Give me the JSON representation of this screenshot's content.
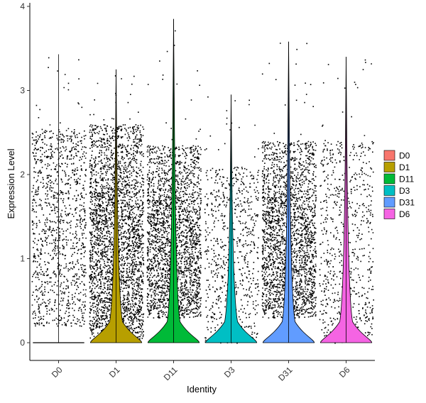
{
  "chart_data": {
    "type": "violin",
    "xlabel": "Identity",
    "ylabel": "Expression Level",
    "ylim": [
      -0.2,
      4.05
    ],
    "yticks": [
      0,
      1,
      2,
      3,
      4
    ],
    "categories": [
      "D0",
      "D1",
      "D11",
      "D3",
      "D31",
      "D6"
    ],
    "grid": false,
    "legend_placement": "right",
    "series": [
      {
        "name": "D0",
        "color": "#F8766D",
        "max": 3.43,
        "violin_peak_width": 0.0,
        "point_density": "medium",
        "point_range": [
          0.2,
          2.55
        ]
      },
      {
        "name": "D1",
        "color": "#B79F00",
        "max": 3.25,
        "violin_peak_width": 0.95,
        "point_density": "high",
        "point_range": [
          0.05,
          2.6
        ]
      },
      {
        "name": "D11",
        "color": "#00BA38",
        "max": 3.85,
        "violin_peak_width": 0.95,
        "point_density": "high",
        "point_range": [
          0.3,
          2.35
        ]
      },
      {
        "name": "D3",
        "color": "#00BFC4",
        "max": 2.95,
        "violin_peak_width": 0.95,
        "point_density": "low",
        "point_range": [
          0.0,
          2.1
        ]
      },
      {
        "name": "D31",
        "color": "#619CFF",
        "max": 3.58,
        "violin_peak_width": 0.95,
        "point_density": "high",
        "point_range": [
          0.3,
          2.4
        ]
      },
      {
        "name": "D6",
        "color": "#F564E3",
        "max": 3.4,
        "violin_peak_width": 0.95,
        "point_density": "low",
        "point_range": [
          0.0,
          2.4
        ]
      }
    ]
  }
}
